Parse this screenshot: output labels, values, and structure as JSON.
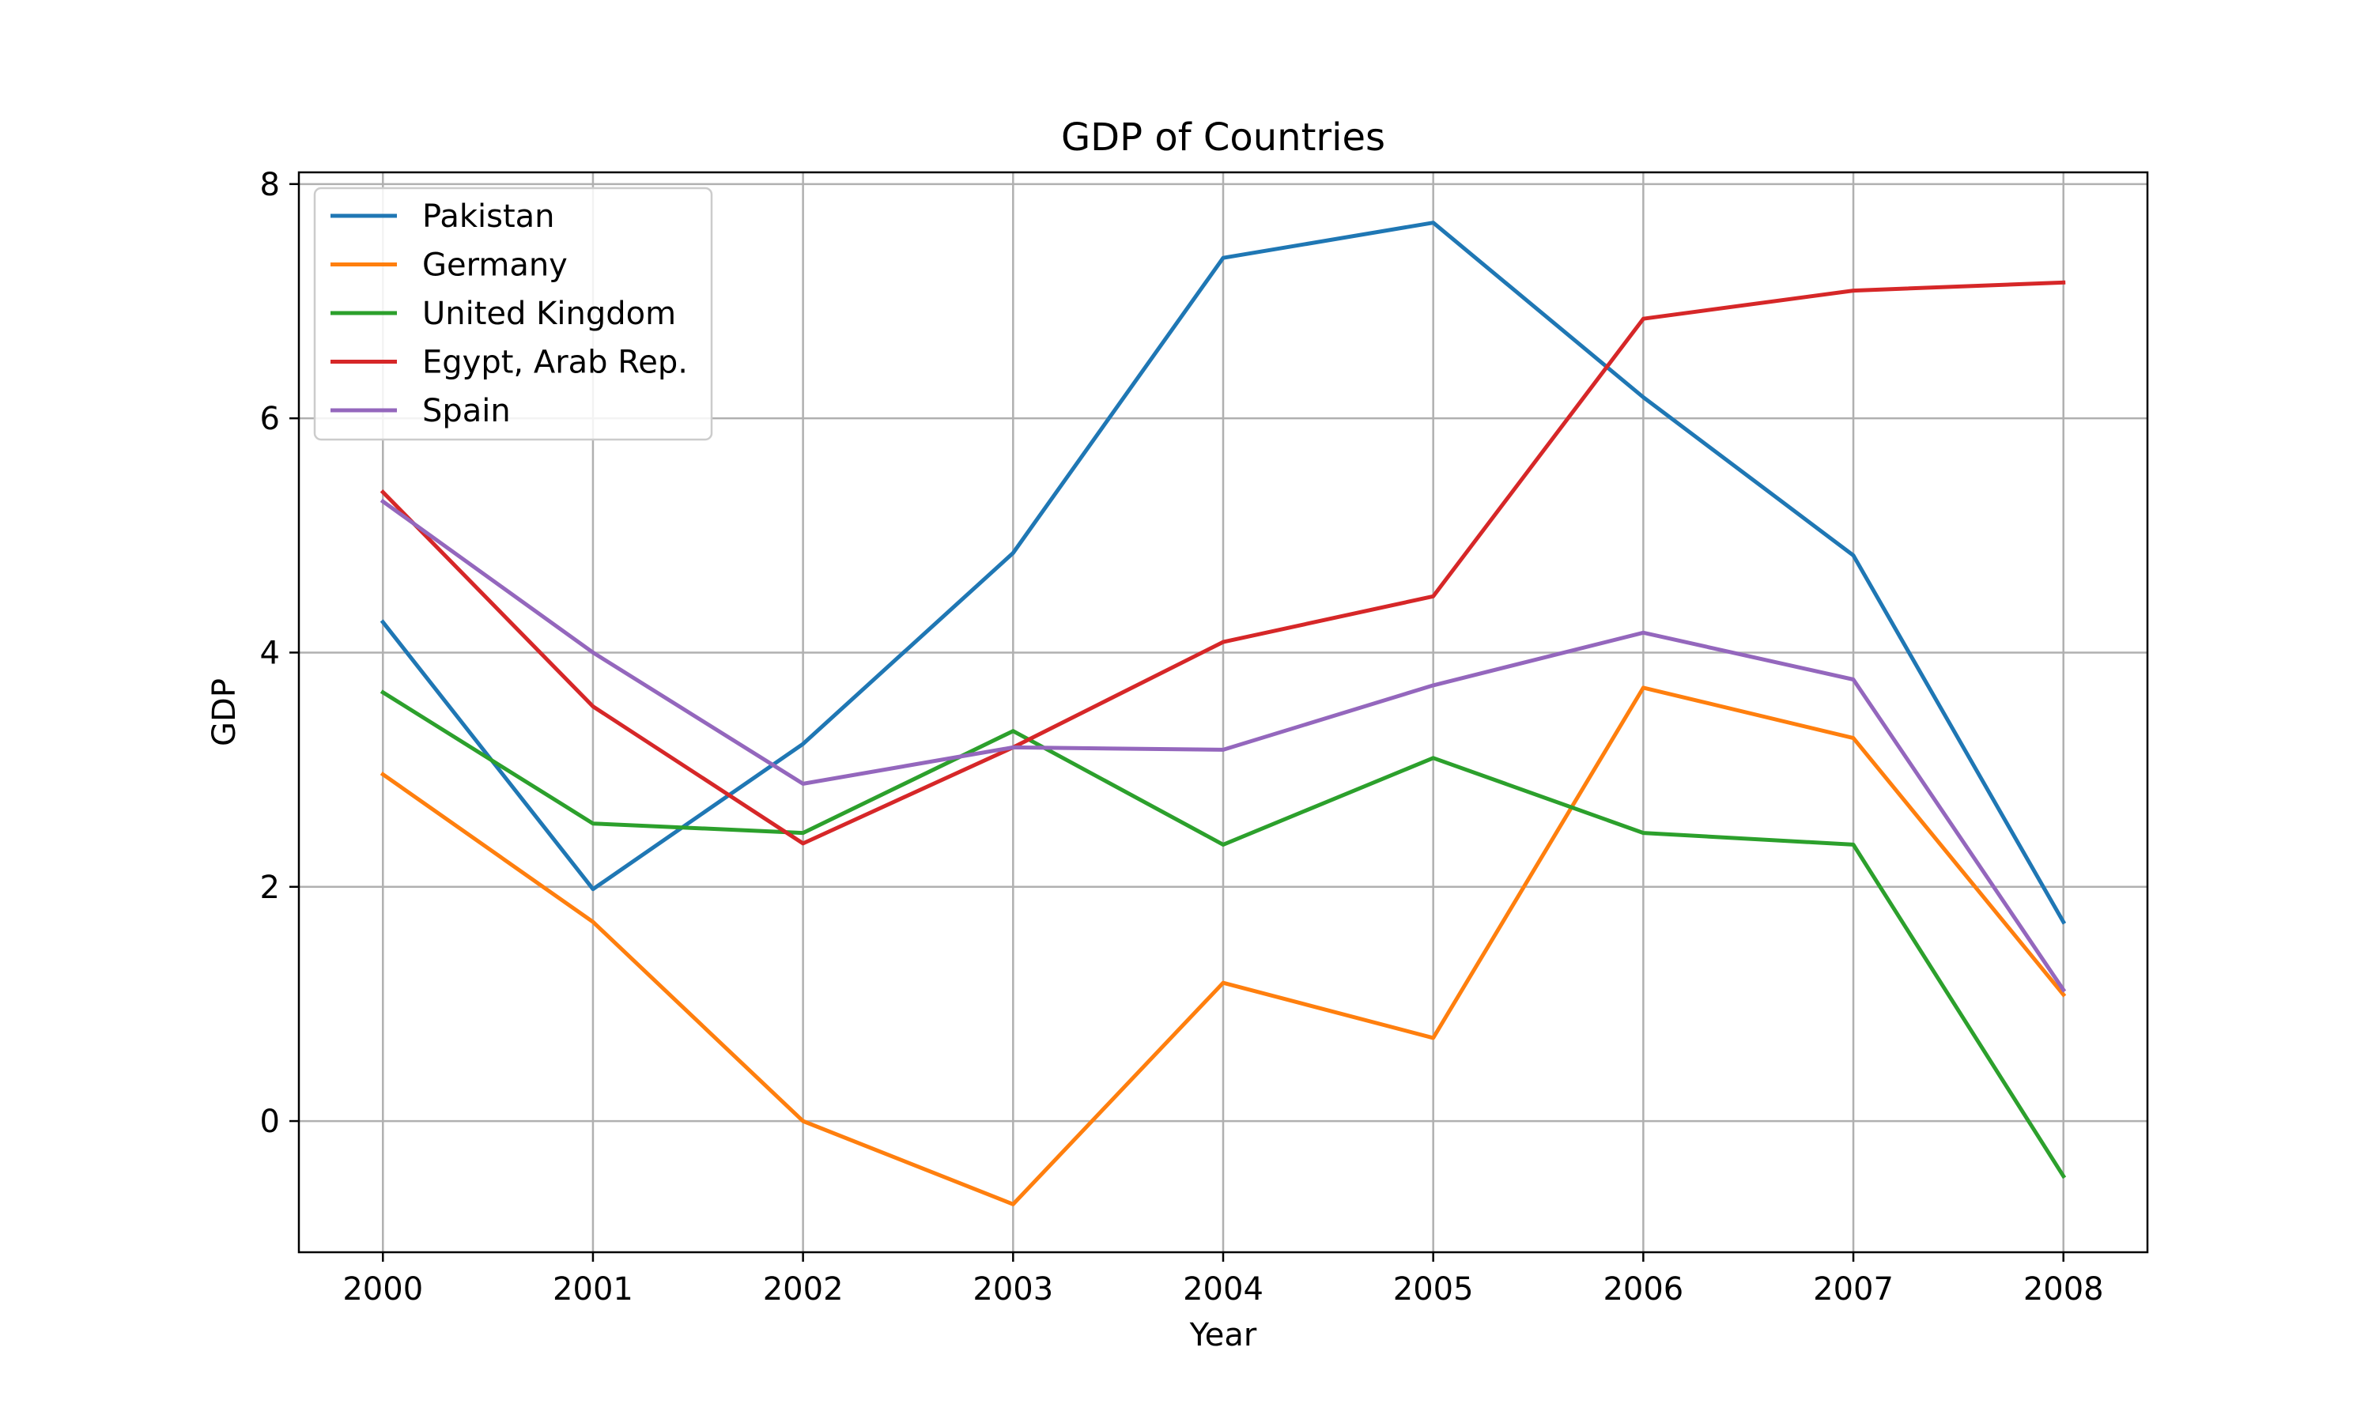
{
  "chart_data": {
    "type": "line",
    "title": "GDP of Countries",
    "xlabel": "Year",
    "ylabel": "GDP",
    "x": [
      2000,
      2001,
      2002,
      2003,
      2004,
      2005,
      2006,
      2007,
      2008
    ],
    "xlim": [
      1999.6,
      2008.4
    ],
    "ylim": [
      -1.12,
      8.1
    ],
    "yticks": [
      0,
      2,
      4,
      6,
      8
    ],
    "grid": true,
    "legend_position": "upper left",
    "series": [
      {
        "name": "Pakistan",
        "color": "#1f77b4",
        "values": [
          4.26,
          1.98,
          3.22,
          4.85,
          7.37,
          7.67,
          6.18,
          4.83,
          1.7
        ]
      },
      {
        "name": "Germany",
        "color": "#ff7f0e",
        "values": [
          2.96,
          1.7,
          0.0,
          -0.71,
          1.18,
          0.71,
          3.7,
          3.27,
          1.08
        ]
      },
      {
        "name": "United Kingdom",
        "color": "#2ca02c",
        "values": [
          3.66,
          2.54,
          2.46,
          3.33,
          2.36,
          3.1,
          2.46,
          2.36,
          -0.47
        ]
      },
      {
        "name": "Egypt, Arab Rep.",
        "color": "#d62728",
        "values": [
          5.37,
          3.54,
          2.37,
          3.19,
          4.09,
          4.48,
          6.85,
          7.09,
          7.16
        ]
      },
      {
        "name": "Spain",
        "color": "#9467bd",
        "values": [
          5.29,
          4.0,
          2.88,
          3.19,
          3.17,
          3.72,
          4.17,
          3.77,
          1.12
        ]
      }
    ]
  }
}
